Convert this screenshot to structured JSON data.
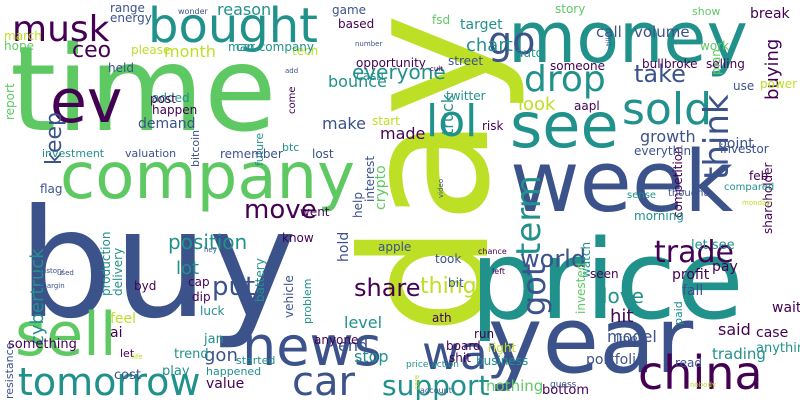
{
  "palette": {
    "dark_purple": "#440154",
    "indigo": "#3b528b",
    "teal": "#21918c",
    "green": "#5ec962",
    "lime": "#bddf26"
  },
  "words": [
    "day",
    "buy",
    "time",
    "price",
    "year",
    "week",
    "money",
    "company",
    "see",
    "sell",
    "news",
    "china",
    "tomorrow",
    "way",
    "ev",
    "sold",
    "car",
    "bought",
    "musk",
    "drop",
    "lol",
    "think",
    "term",
    "trade",
    "support",
    "go",
    "got",
    "world",
    "share",
    "move",
    "position",
    "put",
    "take",
    "keep",
    "ceo",
    "buying",
    "everyone",
    "look",
    "chart",
    "thing",
    "said",
    "love",
    "hit",
    "level",
    "stop",
    "model",
    "trading",
    "gon",
    "lot",
    "bounce",
    "month",
    "reason",
    "call",
    "volume",
    "target",
    "make",
    "made",
    "growth",
    "point",
    "truck",
    "cybertruck",
    "demand",
    "investment",
    "valuation",
    "bitcoin",
    "future",
    "remember",
    "btc",
    "lost",
    "flag",
    "crypto",
    "interest",
    "hold",
    "end",
    "something",
    "let",
    "feel",
    "luck",
    "dip",
    "cap",
    "ai",
    "byd",
    "battery",
    "vehicle",
    "delivery",
    "production",
    "anyone",
    "problem",
    "know",
    "went",
    "help",
    "apple",
    "start",
    "risk",
    "twitter",
    "street",
    "auto",
    "someone",
    "aapl",
    "opportunity",
    "cash",
    "based",
    "fsd",
    "game",
    "energy",
    "range",
    "please",
    "man",
    "tech",
    "added",
    "held",
    "happen",
    "post",
    "hope",
    "report",
    "march",
    "break",
    "show",
    "story",
    "work",
    "plan",
    "use",
    "power",
    "selling",
    "broke",
    "bull",
    "seen",
    "watch",
    "took",
    "bit",
    "board",
    "shit",
    "run",
    "right",
    "business",
    "invested",
    "competition",
    "morning",
    "profit",
    "pay",
    "fall",
    "case",
    "wait",
    "let see",
    "shareholder",
    "investor",
    "everything",
    "feb",
    "compared",
    "sense",
    "thought",
    "portfolio",
    "line",
    "read",
    "nothing",
    "value",
    "happened",
    "started",
    "jan",
    "play",
    "trend",
    "resistance",
    "cost",
    "account",
    "bottom",
    "price action",
    "ath",
    "car company",
    "guess",
    "chance",
    "left",
    "paid",
    "anything",
    "video",
    "life",
    "nobody",
    "come",
    "wonder",
    "number",
    "cult",
    "till",
    "used",
    "margin",
    "history",
    "hey",
    "pop",
    "add",
    "care",
    "monday"
  ]
}
